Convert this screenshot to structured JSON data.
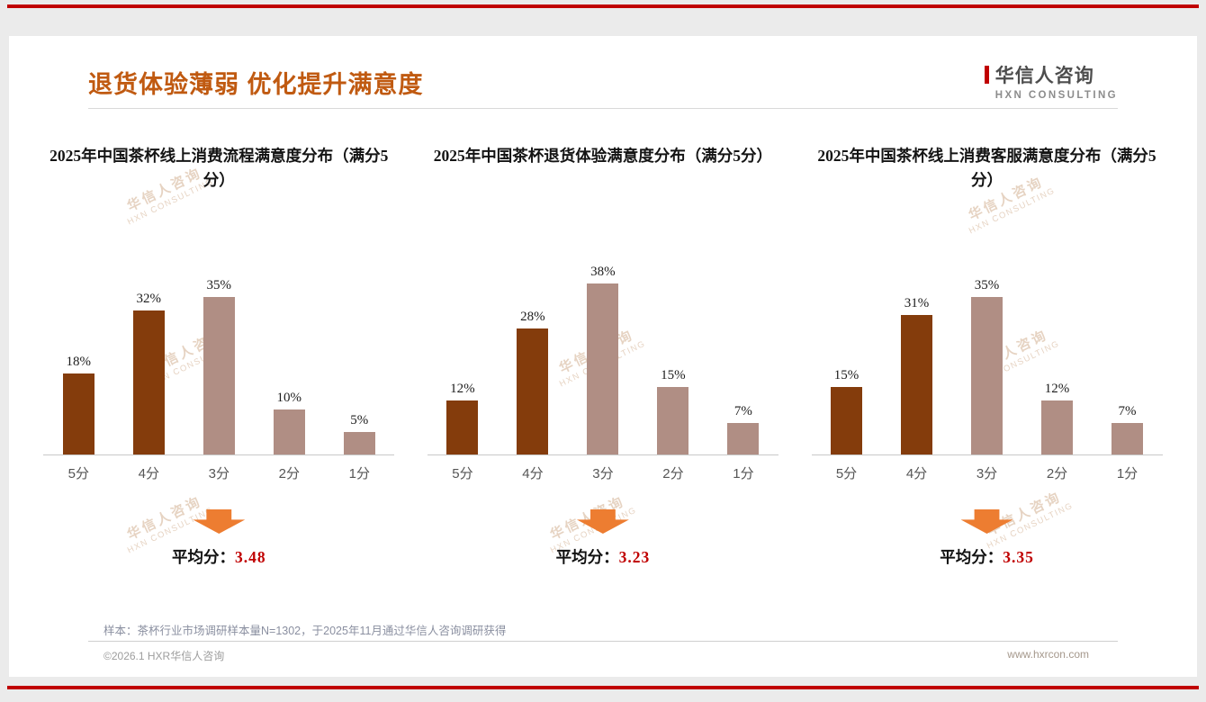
{
  "page": {
    "title": "退货体验薄弱 优化提升满意度",
    "logo": {
      "cn": "华信人咨询",
      "en": "HXN CONSULTING"
    },
    "watermark": {
      "cn": "华信人咨询",
      "en": "HXN CONSULTING"
    },
    "footnote": "样本：茶杯行业市场调研样本量N=1302，于2025年11月通过华信人咨询调研获得",
    "footer": {
      "left": "©2026.1 HXR华信人咨询",
      "right": "www.hxrcon.com"
    }
  },
  "colors": {
    "accent_red": "#c00000",
    "title_brown": "#c05a11",
    "bar_dark": "#843c0c",
    "bar_light": "#b08e84",
    "arrow_orange": "#ed7d31",
    "watermark": "rgba(180,122,70,0.33)"
  },
  "chart_data": [
    {
      "type": "bar",
      "title": "2025年中国茶杯线上消费流程满意度分布（满分5分）",
      "categories": [
        "5分",
        "4分",
        "3分",
        "2分",
        "1分"
      ],
      "values": [
        18,
        32,
        35,
        10,
        5
      ],
      "value_labels": [
        "18%",
        "32%",
        "35%",
        "10%",
        "5%"
      ],
      "bar_colors": [
        "dark",
        "dark",
        "light",
        "light",
        "light"
      ],
      "unit": "%",
      "xlabel": "",
      "ylabel": "",
      "ylim": [
        0,
        40
      ],
      "grid": false,
      "legend": "none",
      "average_label": "平均分：",
      "average_value": "3.48"
    },
    {
      "type": "bar",
      "title": "2025年中国茶杯退货体验满意度分布（满分5分）",
      "categories": [
        "5分",
        "4分",
        "3分",
        "2分",
        "1分"
      ],
      "values": [
        12,
        28,
        38,
        15,
        7
      ],
      "value_labels": [
        "12%",
        "28%",
        "38%",
        "15%",
        "7%"
      ],
      "bar_colors": [
        "dark",
        "dark",
        "light",
        "light",
        "light"
      ],
      "unit": "%",
      "xlabel": "",
      "ylabel": "",
      "ylim": [
        0,
        40
      ],
      "grid": false,
      "legend": "none",
      "average_label": "平均分：",
      "average_value": "3.23"
    },
    {
      "type": "bar",
      "title": "2025年中国茶杯线上消费客服满意度分布（满分5分）",
      "categories": [
        "5分",
        "4分",
        "3分",
        "2分",
        "1分"
      ],
      "values": [
        15,
        31,
        35,
        12,
        7
      ],
      "value_labels": [
        "15%",
        "31%",
        "35%",
        "12%",
        "7%"
      ],
      "bar_colors": [
        "dark",
        "dark",
        "light",
        "light",
        "light"
      ],
      "unit": "%",
      "xlabel": "",
      "ylabel": "",
      "ylim": [
        0,
        40
      ],
      "grid": false,
      "legend": "none",
      "average_label": "平均分：",
      "average_value": "3.35"
    }
  ]
}
